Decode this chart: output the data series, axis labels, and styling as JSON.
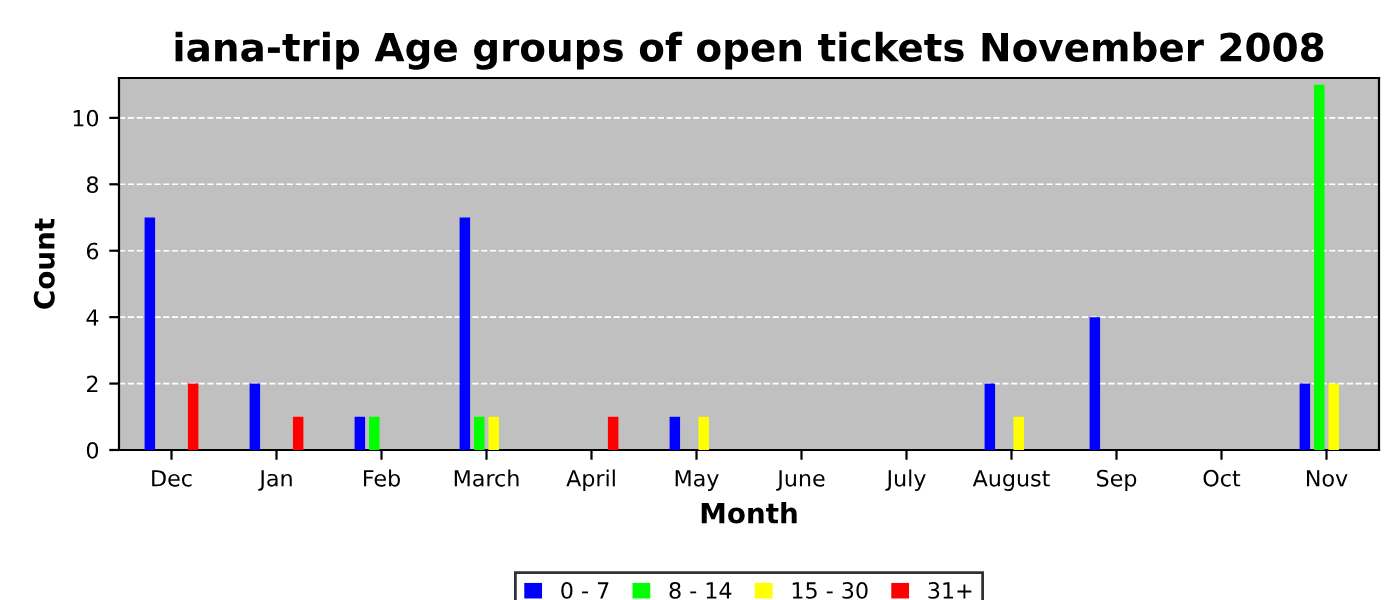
{
  "chart_data": {
    "type": "bar",
    "title": "iana-trip Age groups of open tickets November 2008",
    "xlabel": "Month",
    "ylabel": "Count",
    "categories": [
      "Dec",
      "Jan",
      "Feb",
      "March",
      "April",
      "May",
      "June",
      "July",
      "August",
      "Sep",
      "Oct",
      "Nov"
    ],
    "series": [
      {
        "name": "0 - 7",
        "color": "#0000ff",
        "values": [
          7,
          2,
          1,
          7,
          0,
          1,
          0,
          0,
          2,
          4,
          0,
          2
        ]
      },
      {
        "name": "8 - 14",
        "color": "#00ff00",
        "values": [
          0,
          0,
          1,
          1,
          0,
          0,
          0,
          0,
          0,
          0,
          0,
          11
        ]
      },
      {
        "name": "15 - 30",
        "color": "#ffff00",
        "values": [
          0,
          0,
          0,
          1,
          0,
          1,
          0,
          0,
          1,
          0,
          0,
          2
        ]
      },
      {
        "name": "31+",
        "color": "#ff0000",
        "values": [
          2,
          1,
          0,
          0,
          1,
          0,
          0,
          0,
          0,
          0,
          0,
          0
        ]
      }
    ],
    "ylim": [
      0,
      11.2
    ],
    "yticks": [
      0,
      2,
      4,
      6,
      8,
      10
    ],
    "grid": "y",
    "legend": "bottom"
  }
}
